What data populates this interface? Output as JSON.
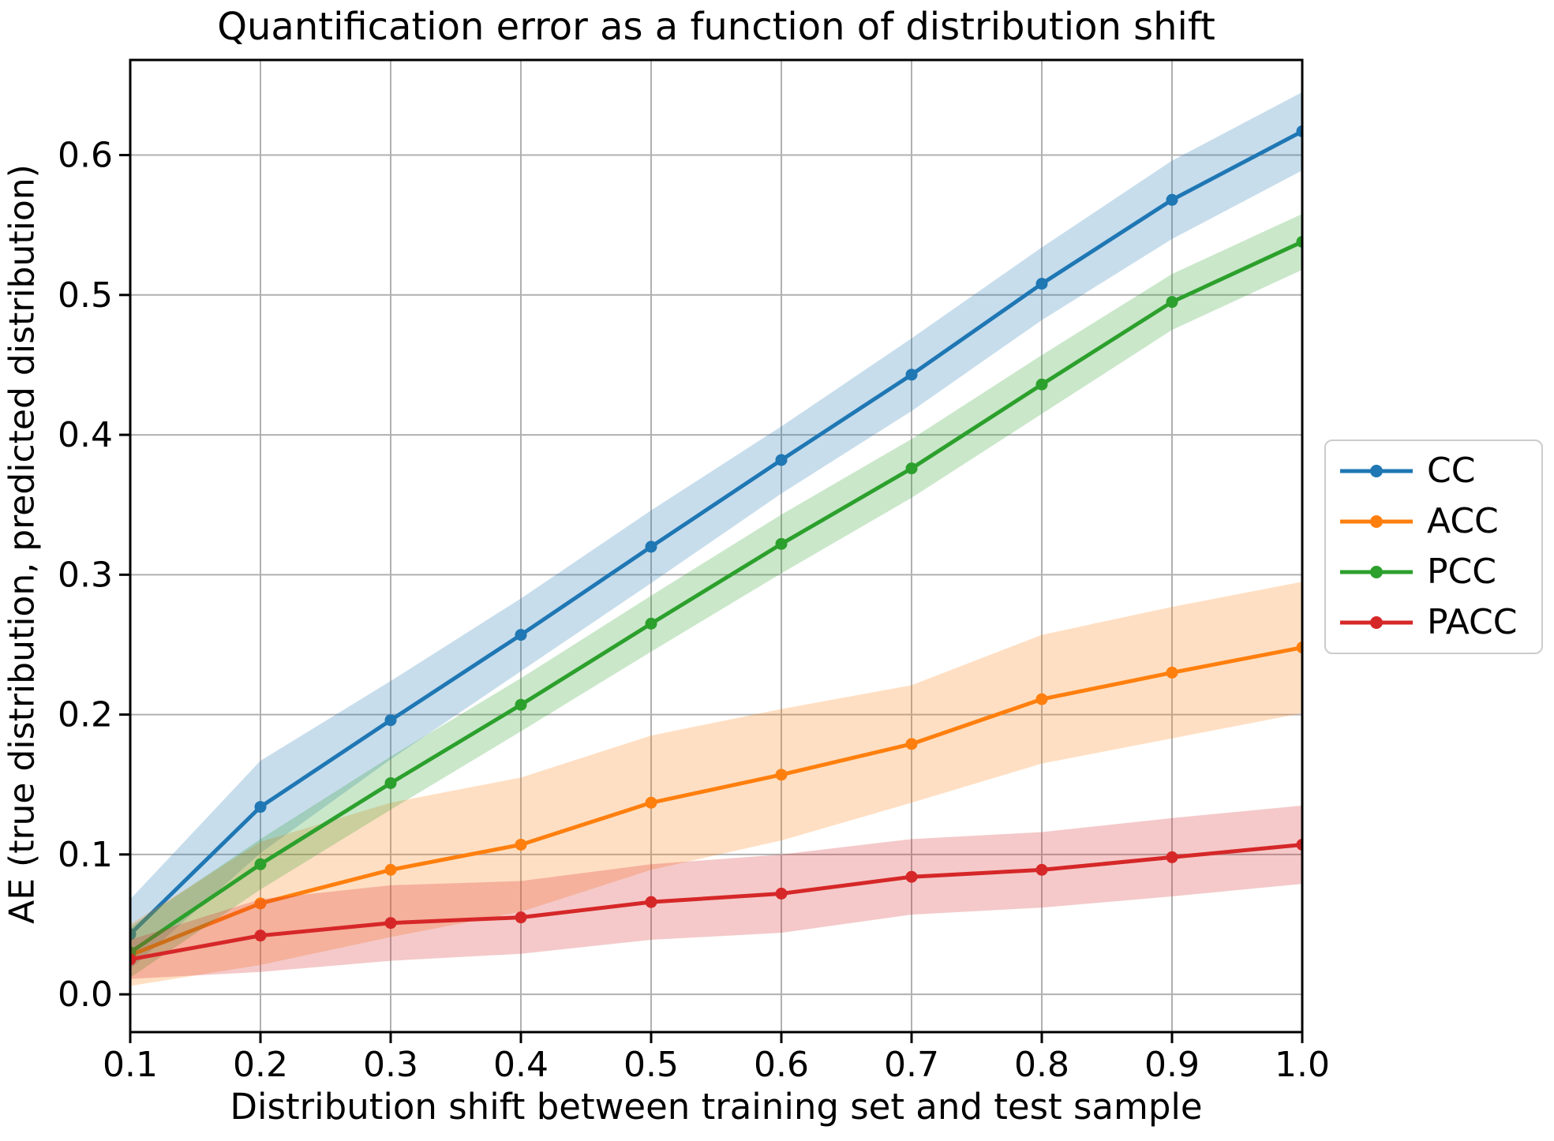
{
  "figure": {
    "background": "#ffffff",
    "spine_color": "#000000"
  },
  "chart_data": {
    "type": "line",
    "title": "Quantification error as a function of distribution shift",
    "xlabel": "Distribution shift between training set and test sample",
    "ylabel": "AE (true distribution, predicted distribution)",
    "x": [
      0.1,
      0.2,
      0.3,
      0.4,
      0.5,
      0.6,
      0.7,
      0.8,
      0.9,
      1.0
    ],
    "xtick_labels": [
      "0.1",
      "0.2",
      "0.3",
      "0.4",
      "0.5",
      "0.6",
      "0.7",
      "0.8",
      "0.9",
      "1.0"
    ],
    "ytick_values": [
      0.0,
      0.1,
      0.2,
      0.3,
      0.4,
      0.5,
      0.6
    ],
    "ytick_labels": [
      "0.0",
      "0.1",
      "0.2",
      "0.3",
      "0.4",
      "0.5",
      "0.6"
    ],
    "xlim": [
      0.1,
      1.0
    ],
    "ylim": [
      -0.027,
      0.668
    ],
    "grid": true,
    "grid_color": "#b0b0b0",
    "band_opacity": 0.25,
    "legend": {
      "position": "outside-right",
      "entries": [
        "CC",
        "ACC",
        "PCC",
        "PACC"
      ]
    },
    "series": [
      {
        "name": "CC",
        "color": "#1f77b4",
        "values": [
          0.043,
          0.134,
          0.196,
          0.257,
          0.32,
          0.382,
          0.443,
          0.508,
          0.568,
          0.617
        ],
        "ci_halfwidth": [
          0.025,
          0.033,
          0.028,
          0.026,
          0.026,
          0.024,
          0.026,
          0.026,
          0.028,
          0.028
        ]
      },
      {
        "name": "ACC",
        "color": "#ff7f0e",
        "values": [
          0.028,
          0.065,
          0.089,
          0.107,
          0.137,
          0.157,
          0.179,
          0.211,
          0.23,
          0.248
        ],
        "ci_halfwidth": [
          0.022,
          0.044,
          0.048,
          0.048,
          0.048,
          0.047,
          0.042,
          0.046,
          0.047,
          0.047
        ]
      },
      {
        "name": "PCC",
        "color": "#2ca02c",
        "values": [
          0.03,
          0.093,
          0.151,
          0.207,
          0.265,
          0.322,
          0.376,
          0.436,
          0.495,
          0.538
        ],
        "ci_halfwidth": [
          0.018,
          0.018,
          0.019,
          0.019,
          0.02,
          0.021,
          0.021,
          0.021,
          0.02,
          0.02
        ]
      },
      {
        "name": "PACC",
        "color": "#d62728",
        "values": [
          0.025,
          0.042,
          0.051,
          0.055,
          0.066,
          0.072,
          0.084,
          0.089,
          0.098,
          0.107
        ],
        "ci_halfwidth": [
          0.014,
          0.026,
          0.027,
          0.026,
          0.027,
          0.028,
          0.027,
          0.027,
          0.028,
          0.028
        ]
      }
    ]
  }
}
